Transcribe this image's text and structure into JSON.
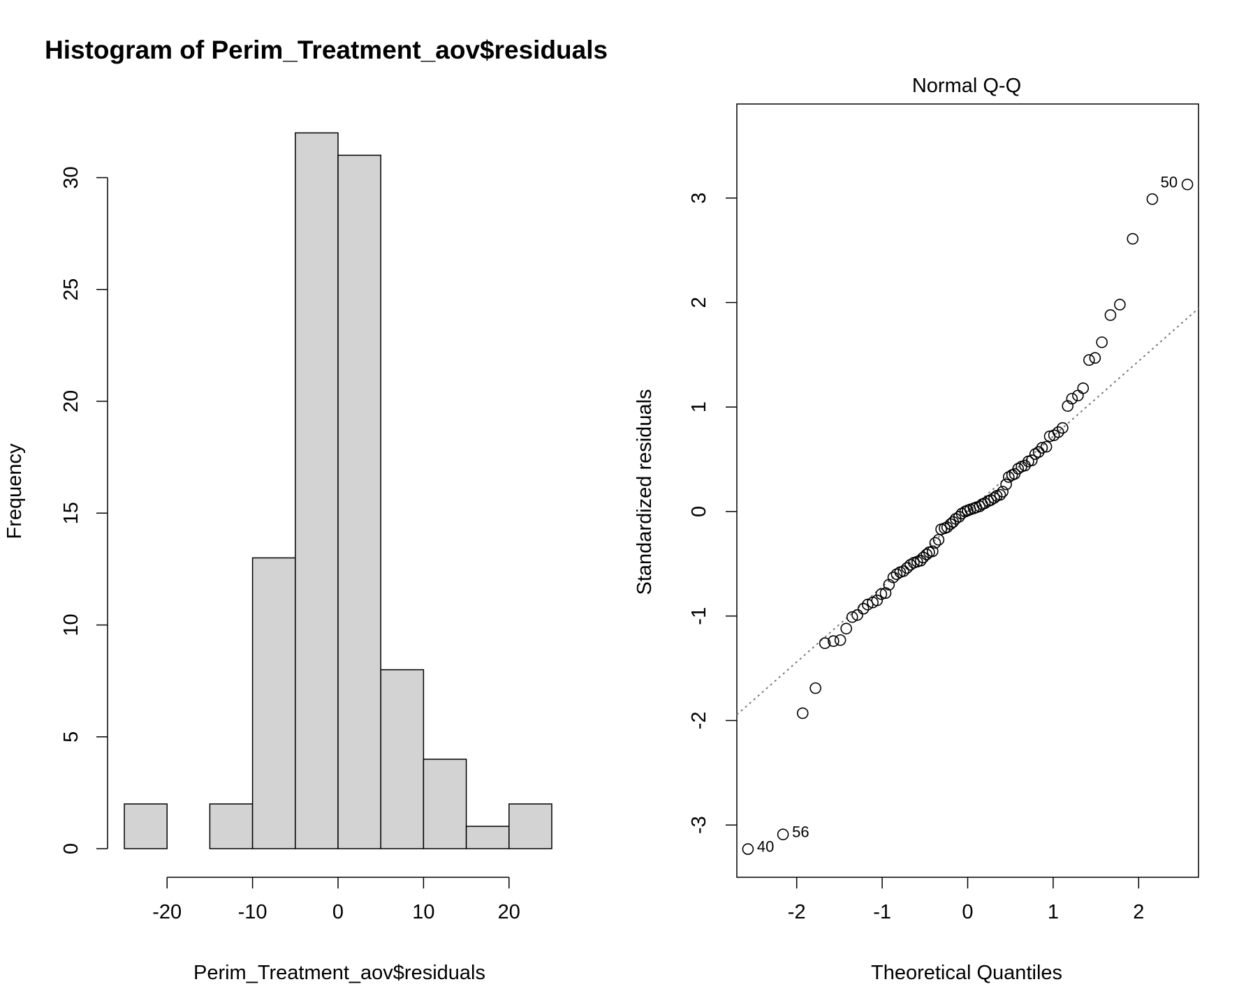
{
  "chart_data": [
    {
      "type": "bar",
      "title": "Histogram of Perim_Treatment_aov$residuals",
      "xlabel": "Perim_Treatment_aov$residuals",
      "ylabel": "Frequency",
      "bin_edges": [
        -25,
        -20,
        -15,
        -10,
        -5,
        0,
        5,
        10,
        15,
        20,
        25
      ],
      "values": [
        2,
        0,
        2,
        13,
        32,
        31,
        8,
        4,
        1,
        2
      ],
      "xlim": [
        -25,
        25
      ],
      "ylim": [
        0,
        32
      ],
      "x_ticks": [
        -20,
        -10,
        0,
        10,
        20
      ],
      "y_ticks": [
        0,
        5,
        10,
        15,
        20,
        25,
        30
      ],
      "bar_color": "#d3d3d3",
      "grid": false
    },
    {
      "type": "scatter",
      "title": "Normal Q-Q",
      "xlabel": "Theoretical Quantiles",
      "ylabel": "Standardized residuals",
      "xlim": [
        -2.7,
        2.7
      ],
      "ylim": [
        -3.5,
        3.9
      ],
      "x_ticks": [
        -2,
        -1,
        0,
        1,
        2
      ],
      "y_ticks": [
        -3,
        -2,
        -1,
        0,
        1,
        2,
        3
      ],
      "reference_line": {
        "slope": 0.72,
        "intercept": 0.0
      },
      "grid": false,
      "points": [
        [
          -2.57,
          -3.23
        ],
        [
          -2.16,
          -3.09
        ],
        [
          -1.93,
          -1.93
        ],
        [
          -1.78,
          -1.69
        ],
        [
          -1.67,
          -1.26
        ],
        [
          -1.57,
          -1.24
        ],
        [
          -1.49,
          -1.23
        ],
        [
          -1.42,
          -1.12
        ],
        [
          -1.35,
          -1.01
        ],
        [
          -1.29,
          -0.99
        ],
        [
          -1.22,
          -0.93
        ],
        [
          -1.17,
          -0.89
        ],
        [
          -1.11,
          -0.87
        ],
        [
          -1.06,
          -0.85
        ],
        [
          -1.01,
          -0.79
        ],
        [
          -0.96,
          -0.78
        ],
        [
          -0.92,
          -0.7
        ],
        [
          -0.87,
          -0.63
        ],
        [
          -0.83,
          -0.6
        ],
        [
          -0.79,
          -0.58
        ],
        [
          -0.75,
          -0.57
        ],
        [
          -0.71,
          -0.54
        ],
        [
          -0.67,
          -0.51
        ],
        [
          -0.63,
          -0.49
        ],
        [
          -0.59,
          -0.48
        ],
        [
          -0.55,
          -0.47
        ],
        [
          -0.52,
          -0.44
        ],
        [
          -0.48,
          -0.41
        ],
        [
          -0.45,
          -0.39
        ],
        [
          -0.41,
          -0.38
        ],
        [
          -0.38,
          -0.3
        ],
        [
          -0.34,
          -0.27
        ],
        [
          -0.31,
          -0.17
        ],
        [
          -0.27,
          -0.16
        ],
        [
          -0.24,
          -0.15
        ],
        [
          -0.2,
          -0.12
        ],
        [
          -0.17,
          -0.1
        ],
        [
          -0.14,
          -0.07
        ],
        [
          -0.1,
          -0.05
        ],
        [
          -0.07,
          -0.02
        ],
        [
          -0.03,
          0.0
        ],
        [
          0.0,
          0.01
        ],
        [
          0.03,
          0.02
        ],
        [
          0.07,
          0.03
        ],
        [
          0.1,
          0.04
        ],
        [
          0.14,
          0.05
        ],
        [
          0.17,
          0.07
        ],
        [
          0.2,
          0.08
        ],
        [
          0.24,
          0.1
        ],
        [
          0.27,
          0.11
        ],
        [
          0.31,
          0.13
        ],
        [
          0.34,
          0.15
        ],
        [
          0.38,
          0.16
        ],
        [
          0.41,
          0.19
        ],
        [
          0.45,
          0.26
        ],
        [
          0.48,
          0.33
        ],
        [
          0.52,
          0.35
        ],
        [
          0.55,
          0.36
        ],
        [
          0.59,
          0.41
        ],
        [
          0.63,
          0.43
        ],
        [
          0.67,
          0.44
        ],
        [
          0.71,
          0.48
        ],
        [
          0.75,
          0.49
        ],
        [
          0.79,
          0.55
        ],
        [
          0.83,
          0.57
        ],
        [
          0.87,
          0.61
        ],
        [
          0.92,
          0.62
        ],
        [
          0.96,
          0.72
        ],
        [
          1.01,
          0.73
        ],
        [
          1.06,
          0.76
        ],
        [
          1.11,
          0.8
        ],
        [
          1.17,
          1.01
        ],
        [
          1.22,
          1.08
        ],
        [
          1.29,
          1.11
        ],
        [
          1.35,
          1.18
        ],
        [
          1.42,
          1.45
        ],
        [
          1.49,
          1.47
        ],
        [
          1.57,
          1.62
        ],
        [
          1.67,
          1.88
        ],
        [
          1.78,
          1.98
        ],
        [
          1.93,
          2.61
        ],
        [
          2.16,
          2.99
        ],
        [
          2.57,
          3.13
        ]
      ],
      "point_labels": [
        {
          "text": "50",
          "x": 2.57,
          "y": 3.13,
          "side": "left"
        },
        {
          "text": "56",
          "x": -2.16,
          "y": -3.09,
          "side": "right"
        },
        {
          "text": "40",
          "x": -2.57,
          "y": -3.23,
          "side": "right"
        }
      ]
    }
  ]
}
